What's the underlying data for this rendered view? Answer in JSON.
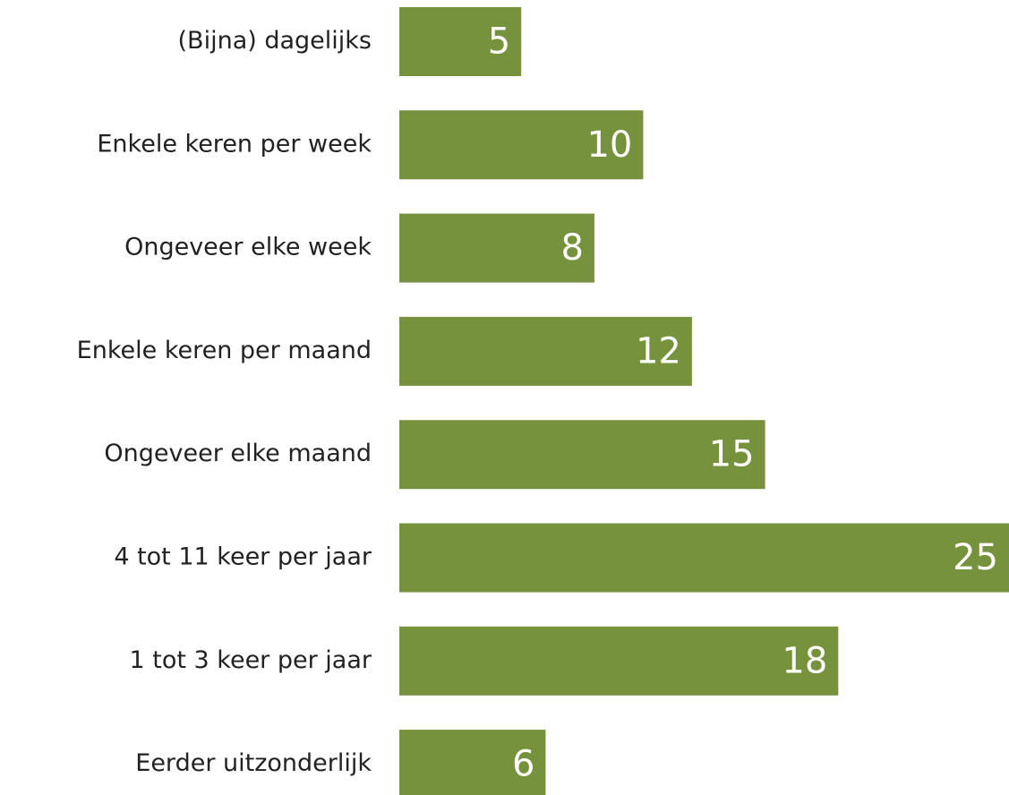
{
  "chart_data": {
    "type": "barh",
    "categories": [
      "(Bijna) dagelijks",
      "Enkele keren per week",
      "Ongeveer elke week",
      "Enkele keren per maand",
      "Ongeveer elke maand",
      "4 tot 11 keer per jaar",
      "1 tot 3 keer per jaar",
      "Eerder uitzonderlijk"
    ],
    "values": [
      5,
      10,
      8,
      12,
      15,
      25,
      18,
      6
    ],
    "color": "#76923c",
    "xlim": [
      0,
      25
    ]
  }
}
